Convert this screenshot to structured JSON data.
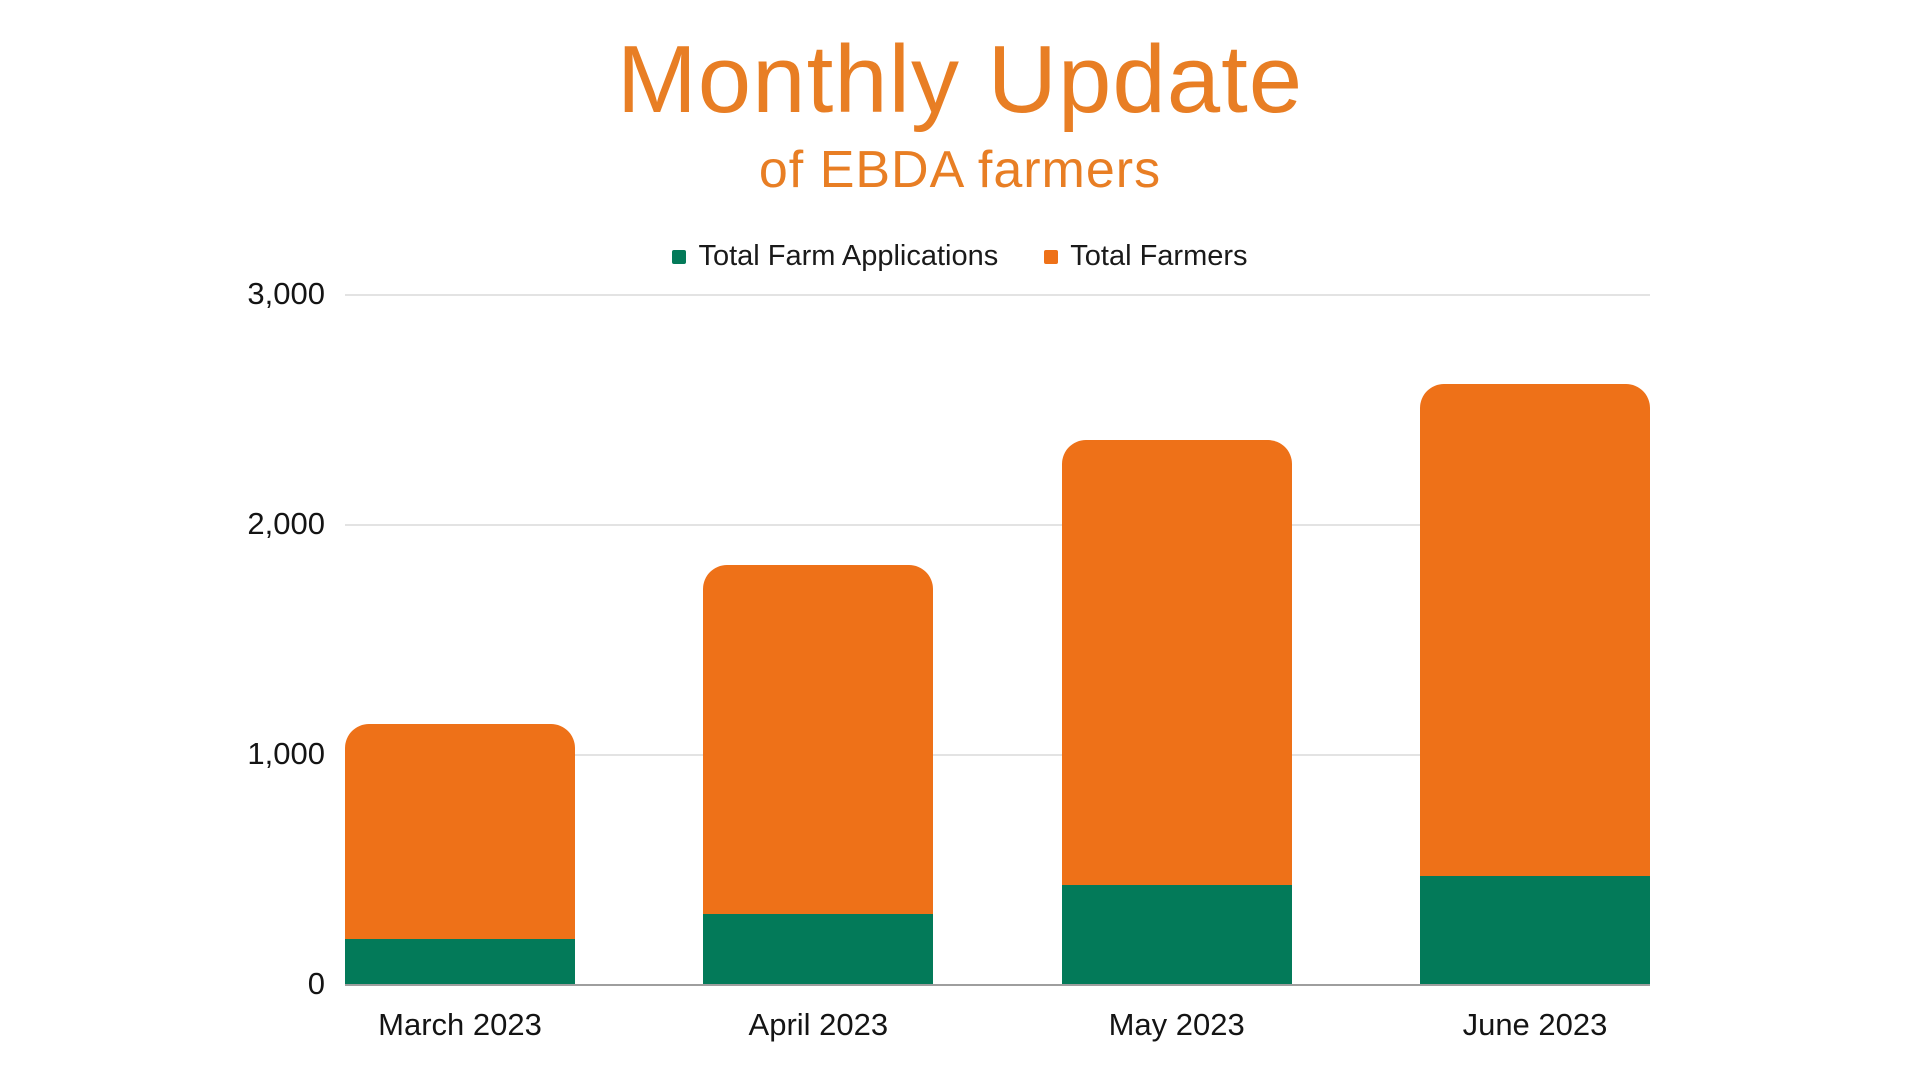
{
  "title": "Monthly Update",
  "subtitle": "of EBDA farmers",
  "colors": {
    "title_orange": "#E87E24",
    "bar_orange": "#EE7118",
    "bar_green": "#037A59",
    "gridline": "#E3E3E3",
    "baseline": "#9E9E9E",
    "text": "#141414"
  },
  "chart_data": {
    "type": "bar",
    "stacked": true,
    "title": "Monthly Update",
    "subtitle": "of EBDA farmers",
    "categories": [
      "March 2023",
      "April 2023",
      "May 2023",
      "June 2023"
    ],
    "series": [
      {
        "name": "Total Farm Applications",
        "color": "#037A59",
        "values": [
          200,
          310,
          435,
          475
        ]
      },
      {
        "name": "Total Farmers",
        "color": "#EE7118",
        "values": [
          935,
          1515,
          1935,
          2140
        ]
      }
    ],
    "stack_totals": [
      1135,
      1825,
      2370,
      2615
    ],
    "ylim": [
      0,
      3000
    ],
    "yticks": [
      "0",
      "1,000",
      "2,000",
      "3,000"
    ],
    "ytick_values": [
      0,
      1000,
      2000,
      3000
    ],
    "grid": true,
    "legend_position": "top"
  }
}
